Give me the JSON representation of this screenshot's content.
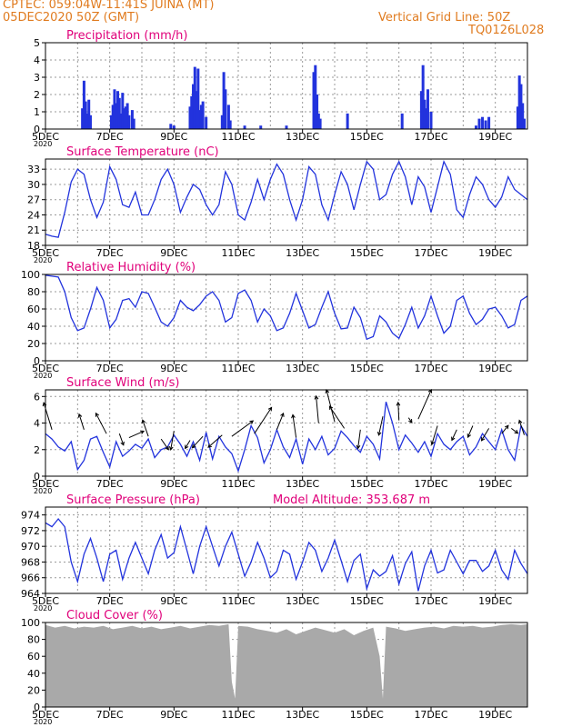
{
  "header": {
    "line1": "CPTEC:   059:04W-11:41S   JUINA (MT)",
    "line2": "05DEC2020 50Z (GMT)",
    "right1": "Vertical Grid Line: 50Z",
    "right2": "TQ0126L028"
  },
  "colors": {
    "header": "#e07b1f",
    "panel_title": "#e0007a",
    "line": "#2233dd",
    "cloud": "#a9a9a9",
    "grid": "#9a9a9a"
  },
  "x_axis": {
    "range_days": [
      5,
      20
    ],
    "tick_labels": [
      "5DEC",
      "7DEC",
      "9DEC",
      "11DEC",
      "13DEC",
      "15DEC",
      "17DEC",
      "19DEC"
    ],
    "tick_days": [
      5,
      7,
      9,
      11,
      13,
      15,
      17,
      19
    ],
    "year_label": "2020"
  },
  "chart_data": [
    {
      "type": "bar",
      "title": "Precipitation (mm/h)",
      "ylim": [
        0,
        5
      ],
      "yticks": [
        0,
        1,
        2,
        3,
        4,
        5
      ],
      "series": [
        {
          "x": [
            6.15,
            6.2,
            6.25,
            6.3,
            6.35,
            6.4,
            7.05,
            7.1,
            7.15,
            7.2,
            7.25,
            7.3,
            7.35,
            7.4,
            7.45,
            7.5,
            7.55,
            7.6,
            7.7,
            7.75,
            8.9,
            9.0,
            9.5,
            9.55,
            9.6,
            9.65,
            9.7,
            9.75,
            9.8,
            9.85,
            9.9,
            10.0,
            10.5,
            10.55,
            10.6,
            10.7,
            10.75,
            11.2,
            11.7,
            12.5,
            13.35,
            13.4,
            13.45,
            13.5,
            13.55,
            14.4,
            16.1,
            16.7,
            16.75,
            16.8,
            16.85,
            16.9,
            17.0,
            18.4,
            18.5,
            18.6,
            18.7,
            18.8,
            19.7,
            19.75,
            19.8,
            19.85,
            19.9
          ],
          "values": [
            1.2,
            2.8,
            1.6,
            0.9,
            1.7,
            0.8,
            0.8,
            1.4,
            2.3,
            1.5,
            2.2,
            1.8,
            0.9,
            2.1,
            1.2,
            1.3,
            1.5,
            0.8,
            1.1,
            0.6,
            0.3,
            0.2,
            1.3,
            1.9,
            2.6,
            3.6,
            2.2,
            3.5,
            1.1,
            1.4,
            1.6,
            0.7,
            0.8,
            3.3,
            2.3,
            1.4,
            0.5,
            0.2,
            0.2,
            0.2,
            3.3,
            3.7,
            2.0,
            0.9,
            0.6,
            0.9,
            0.9,
            2.2,
            3.7,
            1.7,
            1.2,
            2.3,
            1.0,
            0.2,
            0.6,
            0.7,
            0.5,
            0.7,
            1.3,
            3.1,
            2.6,
            1.5,
            0.6
          ]
        }
      ]
    },
    {
      "type": "line",
      "title": "Surface Temperature (nC)",
      "ylim": [
        18,
        35
      ],
      "yticks": [
        18,
        21,
        24,
        27,
        30,
        33
      ],
      "series": [
        {
          "x": [
            5.0,
            5.2,
            5.4,
            5.6,
            5.8,
            6.0,
            6.2,
            6.4,
            6.6,
            6.8,
            7.0,
            7.2,
            7.4,
            7.6,
            7.8,
            8.0,
            8.2,
            8.4,
            8.6,
            8.8,
            9.0,
            9.2,
            9.4,
            9.6,
            9.8,
            10.0,
            10.2,
            10.4,
            10.6,
            10.8,
            11.0,
            11.2,
            11.4,
            11.6,
            11.8,
            12.0,
            12.2,
            12.4,
            12.6,
            12.8,
            13.0,
            13.2,
            13.4,
            13.6,
            13.8,
            14.0,
            14.2,
            14.4,
            14.6,
            14.8,
            15.0,
            15.2,
            15.4,
            15.6,
            15.8,
            16.0,
            16.2,
            16.4,
            16.6,
            16.8,
            17.0,
            17.2,
            17.4,
            17.6,
            17.8,
            18.0,
            18.2,
            18.4,
            18.6,
            18.8,
            19.0,
            19.2,
            19.4,
            19.6,
            19.8,
            20.0
          ],
          "values": [
            20.2,
            19.8,
            19.6,
            24.5,
            30.5,
            33.0,
            32.0,
            27.0,
            23.5,
            26.5,
            33.5,
            31.0,
            26.0,
            25.5,
            28.5,
            24.0,
            24.0,
            27.0,
            31.0,
            33.0,
            30.0,
            24.5,
            27.5,
            30.0,
            29.0,
            26.0,
            24.0,
            26.0,
            32.5,
            30.0,
            24.0,
            23.0,
            26.5,
            31.0,
            27.0,
            31.0,
            34.0,
            32.0,
            27.0,
            23.0,
            27.0,
            33.5,
            32.0,
            26.0,
            23.0,
            28.0,
            32.5,
            30.0,
            25.0,
            30.0,
            34.5,
            33.0,
            27.0,
            28.0,
            32.0,
            34.5,
            31.5,
            26.0,
            31.5,
            29.5,
            24.5,
            29.5,
            34.5,
            32.0,
            25.0,
            23.5,
            28.0,
            31.5,
            30.0,
            27.0,
            25.5,
            27.5,
            31.5,
            29.0,
            28.0,
            27.0
          ]
        }
      ]
    },
    {
      "type": "line",
      "title": "Relative Humidity (%)",
      "ylim": [
        0,
        100
      ],
      "yticks": [
        0,
        20,
        40,
        60,
        80,
        100
      ],
      "series": [
        {
          "x": [
            5.0,
            5.2,
            5.4,
            5.6,
            5.8,
            6.0,
            6.2,
            6.4,
            6.6,
            6.8,
            7.0,
            7.2,
            7.4,
            7.6,
            7.8,
            8.0,
            8.2,
            8.4,
            8.6,
            8.8,
            9.0,
            9.2,
            9.4,
            9.6,
            9.8,
            10.0,
            10.2,
            10.4,
            10.6,
            10.8,
            11.0,
            11.2,
            11.4,
            11.6,
            11.8,
            12.0,
            12.2,
            12.4,
            12.6,
            12.8,
            13.0,
            13.2,
            13.4,
            13.6,
            13.8,
            14.0,
            14.2,
            14.4,
            14.6,
            14.8,
            15.0,
            15.2,
            15.4,
            15.6,
            15.8,
            16.0,
            16.2,
            16.4,
            16.6,
            16.8,
            17.0,
            17.2,
            17.4,
            17.6,
            17.8,
            18.0,
            18.2,
            18.4,
            18.6,
            18.8,
            19.0,
            19.2,
            19.4,
            19.6,
            19.8,
            20.0
          ],
          "values": [
            99,
            98,
            97,
            80,
            50,
            35,
            38,
            60,
            85,
            70,
            38,
            48,
            70,
            72,
            62,
            80,
            78,
            62,
            45,
            40,
            50,
            70,
            62,
            58,
            65,
            75,
            80,
            70,
            45,
            50,
            78,
            82,
            70,
            45,
            60,
            52,
            35,
            38,
            55,
            78,
            58,
            38,
            42,
            62,
            80,
            55,
            37,
            38,
            62,
            50,
            25,
            28,
            52,
            45,
            32,
            26,
            42,
            62,
            38,
            52,
            75,
            52,
            32,
            40,
            70,
            75,
            55,
            42,
            48,
            60,
            62,
            52,
            38,
            42,
            70,
            75
          ]
        }
      ]
    },
    {
      "type": "line",
      "title": "Surface Wind (m/s)",
      "ylim": [
        0,
        6.5
      ],
      "yticks": [
        0,
        2,
        4,
        6
      ],
      "series": [
        {
          "x": [
            5.0,
            5.2,
            5.4,
            5.6,
            5.8,
            6.0,
            6.2,
            6.4,
            6.6,
            6.8,
            7.0,
            7.2,
            7.4,
            7.6,
            7.8,
            8.0,
            8.2,
            8.4,
            8.6,
            8.8,
            9.0,
            9.2,
            9.4,
            9.6,
            9.8,
            10.0,
            10.2,
            10.4,
            10.6,
            10.8,
            11.0,
            11.2,
            11.4,
            11.6,
            11.8,
            12.0,
            12.2,
            12.4,
            12.6,
            12.8,
            13.0,
            13.2,
            13.4,
            13.6,
            13.8,
            14.0,
            14.2,
            14.4,
            14.6,
            14.8,
            15.0,
            15.2,
            15.4,
            15.6,
            15.8,
            16.0,
            16.2,
            16.4,
            16.6,
            16.8,
            17.0,
            17.2,
            17.4,
            17.6,
            17.8,
            18.0,
            18.2,
            18.4,
            18.6,
            18.8,
            19.0,
            19.2,
            19.4,
            19.6,
            19.8,
            20.0
          ],
          "values": [
            3.2,
            2.8,
            2.2,
            1.9,
            2.6,
            0.5,
            1.2,
            2.8,
            3.0,
            1.8,
            0.7,
            2.6,
            1.5,
            1.9,
            2.4,
            2.1,
            2.8,
            1.4,
            2.0,
            2.2,
            3.1,
            2.4,
            1.5,
            2.6,
            1.2,
            3.3,
            1.3,
            3.0,
            2.2,
            1.7,
            0.4,
            2.0,
            3.8,
            2.9,
            1.0,
            2.0,
            3.5,
            2.2,
            1.4,
            2.8,
            0.9,
            2.8,
            2.0,
            3.0,
            1.6,
            2.1,
            3.4,
            2.9,
            2.3,
            1.8,
            3.0,
            2.4,
            1.3,
            5.6,
            4.0,
            2.0,
            3.1,
            2.5,
            1.8,
            2.6,
            1.5,
            3.2,
            2.4,
            2.0,
            2.6,
            3.0,
            1.6,
            2.2,
            3.2,
            2.6,
            2.0,
            3.5,
            2.0,
            1.2,
            3.8,
            3.0
          ]
        }
      ],
      "wind_arrows": [
        [
          5.2,
          3.5,
          -1,
          3.3
        ],
        [
          6.2,
          3.5,
          -0.6,
          1.9
        ],
        [
          6.9,
          3.2,
          -1.3,
          2.5
        ],
        [
          7.3,
          3.2,
          0.5,
          -1.4
        ],
        [
          7.6,
          2.9,
          1.8,
          0.8
        ],
        [
          8.2,
          3.0,
          -0.7,
          2.0
        ],
        [
          8.6,
          2.8,
          0.9,
          -1.3
        ],
        [
          9.0,
          3.4,
          -0.4,
          -2.3
        ],
        [
          9.5,
          2.7,
          -0.6,
          -1.0
        ],
        [
          9.9,
          3.0,
          -1.3,
          -1.4
        ],
        [
          10.5,
          3.1,
          -1.7,
          -1.5
        ],
        [
          10.8,
          3.0,
          2.6,
          1.9
        ],
        [
          11.5,
          3.2,
          2.1,
          3.2
        ],
        [
          12.2,
          3.5,
          0.8,
          2.0
        ],
        [
          12.8,
          2.9,
          -0.4,
          2.8
        ],
        [
          13.5,
          4.0,
          -0.3,
          3.3
        ],
        [
          14.0,
          4.1,
          -1.0,
          3.9
        ],
        [
          14.3,
          3.6,
          -1.8,
          2.7
        ],
        [
          14.8,
          3.5,
          -0.3,
          -2.3
        ],
        [
          15.5,
          4.5,
          -0.5,
          -2.3
        ],
        [
          16.0,
          4.2,
          -0.1,
          2.2
        ],
        [
          16.3,
          4.4,
          0.4,
          -0.6
        ],
        [
          16.6,
          4.3,
          1.6,
          3.6
        ],
        [
          17.2,
          3.8,
          -0.7,
          -2.3
        ],
        [
          17.8,
          3.5,
          -0.6,
          -1.3
        ],
        [
          18.3,
          3.8,
          -0.6,
          -1.4
        ],
        [
          18.8,
          3.6,
          -0.9,
          -1.5
        ],
        [
          19.2,
          3.2,
          0.8,
          1.0
        ],
        [
          19.5,
          3.6,
          0.8,
          -0.6
        ],
        [
          19.9,
          3.1,
          -0.6,
          1.8
        ]
      ]
    },
    {
      "type": "line",
      "title": "Surface Pressure (hPa)",
      "annotation": "Model Altitude: 353.687 m",
      "ylim": [
        964,
        975
      ],
      "yticks": [
        964,
        966,
        968,
        970,
        972,
        974
      ],
      "series": [
        {
          "x": [
            5.0,
            5.2,
            5.4,
            5.6,
            5.8,
            6.0,
            6.2,
            6.4,
            6.6,
            6.8,
            7.0,
            7.2,
            7.4,
            7.6,
            7.8,
            8.0,
            8.2,
            8.4,
            8.6,
            8.8,
            9.0,
            9.2,
            9.4,
            9.6,
            9.8,
            10.0,
            10.2,
            10.4,
            10.6,
            10.8,
            11.0,
            11.2,
            11.4,
            11.6,
            11.8,
            12.0,
            12.2,
            12.4,
            12.6,
            12.8,
            13.0,
            13.2,
            13.4,
            13.6,
            13.8,
            14.0,
            14.2,
            14.4,
            14.6,
            14.8,
            15.0,
            15.2,
            15.4,
            15.6,
            15.8,
            16.0,
            16.2,
            16.4,
            16.6,
            16.8,
            17.0,
            17.2,
            17.4,
            17.6,
            17.8,
            18.0,
            18.2,
            18.4,
            18.6,
            18.8,
            19.0,
            19.2,
            19.4,
            19.6,
            19.8,
            20.0
          ],
          "values": [
            973,
            972.5,
            973.5,
            972.5,
            968,
            965.5,
            969,
            971,
            968.5,
            965.5,
            969,
            969.5,
            965.8,
            968.5,
            970.5,
            968.5,
            966.5,
            969.5,
            971.5,
            968.5,
            969.2,
            972.5,
            969.5,
            966.5,
            970,
            972.5,
            970,
            967.5,
            970,
            971.8,
            969,
            966.2,
            968,
            970.5,
            968.5,
            966,
            966.8,
            969.5,
            969,
            965.8,
            968,
            970.5,
            969.5,
            966.8,
            968.5,
            970.8,
            968.2,
            965.5,
            968.2,
            969,
            964.6,
            967,
            966.2,
            966.8,
            968.8,
            965.2,
            967.8,
            969.3,
            964.3,
            967.5,
            969.5,
            966.6,
            967,
            969.5,
            968,
            966.5,
            968.2,
            968.2,
            966.8,
            967.5,
            969.5,
            967,
            965.8,
            969.5,
            967.8,
            966.5
          ]
        }
      ]
    },
    {
      "type": "area",
      "title": "Cloud Cover (%)",
      "ylim": [
        0,
        100
      ],
      "yticks": [
        0,
        20,
        40,
        60,
        80,
        100
      ],
      "series": [
        {
          "x": [
            5.0,
            5.3,
            5.6,
            5.9,
            6.2,
            6.5,
            6.8,
            7.1,
            7.4,
            7.7,
            8.0,
            8.3,
            8.6,
            8.9,
            9.2,
            9.5,
            9.8,
            10.1,
            10.4,
            10.7,
            10.8,
            10.9,
            11.0,
            11.3,
            11.6,
            11.9,
            12.2,
            12.5,
            12.8,
            13.1,
            13.4,
            13.7,
            14.0,
            14.3,
            14.6,
            14.9,
            15.2,
            15.4,
            15.5,
            15.6,
            15.9,
            16.2,
            16.5,
            16.8,
            17.1,
            17.4,
            17.7,
            18.0,
            18.3,
            18.6,
            18.9,
            19.2,
            19.5,
            19.8,
            20.0
          ],
          "values": [
            97,
            94,
            96,
            93,
            95,
            94,
            96,
            92,
            94,
            96,
            93,
            95,
            92,
            94,
            96,
            93,
            95,
            97,
            96,
            98,
            30,
            10,
            96,
            95,
            92,
            90,
            88,
            92,
            86,
            90,
            94,
            91,
            88,
            92,
            85,
            90,
            94,
            60,
            10,
            95,
            93,
            90,
            92,
            94,
            95,
            93,
            96,
            95,
            96,
            94,
            95,
            97,
            98,
            97,
            98
          ]
        }
      ]
    }
  ]
}
